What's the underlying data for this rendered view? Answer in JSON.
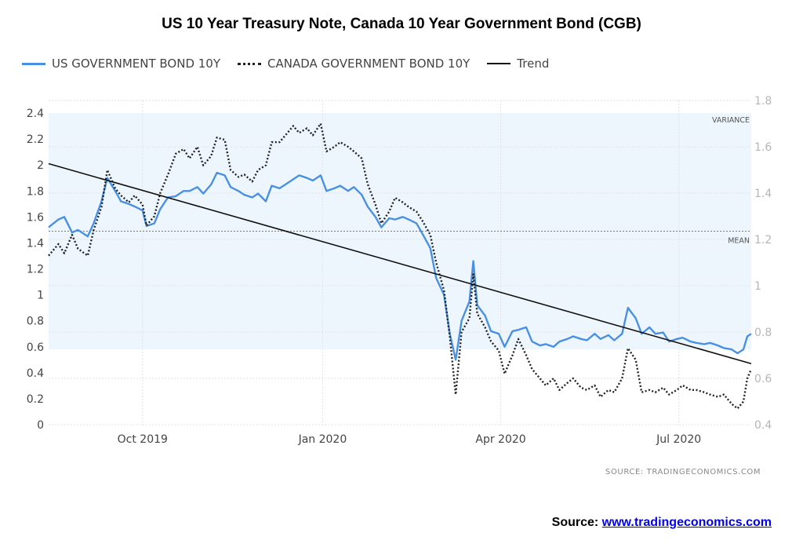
{
  "title": "US 10 Year Treasury Note, Canada 10 Year Government Bond (CGB)",
  "legend": {
    "us": "US GOVERNMENT BOND 10Y",
    "canada": "CANADA GOVERNMENT BOND 10Y",
    "trend": "Trend"
  },
  "annotations": {
    "variance": "VARIANCE",
    "mean": "MEAN"
  },
  "source_small": "SOURCE:  TRADINGECONOMICS.COM",
  "footer": {
    "label": "Source: ",
    "link_text": "www.tradingeconomics.com"
  },
  "colors": {
    "us": "#4a90e2",
    "canada": "#222222",
    "trend": "#111111",
    "variance_band": "#eef6fd"
  },
  "chart_data": {
    "type": "line",
    "title": "US 10 Year Treasury Note, Canada 10 Year Government Bond (CGB)",
    "x_axis": {
      "type": "date",
      "range": [
        "2019-08-14",
        "2020-08-07"
      ],
      "tick_labels": [
        {
          "date": "2019-10-01",
          "label": "Oct 2019"
        },
        {
          "date": "2020-01-01",
          "label": "Jan 2020"
        },
        {
          "date": "2020-04-01",
          "label": "Apr 2020"
        },
        {
          "date": "2020-07-01",
          "label": "Jul 2020"
        }
      ]
    },
    "y_left": {
      "ylim": [
        0,
        2.4
      ],
      "ticks": [
        0,
        0.2,
        0.4,
        0.6,
        0.8,
        1,
        1.2,
        1.4,
        1.6,
        1.8,
        2,
        2.2,
        2.4
      ],
      "series": "US GOVERNMENT BOND 10Y"
    },
    "y_right": {
      "ylim": [
        0.4,
        1.8
      ],
      "ticks": [
        0.4,
        0.6,
        0.8,
        1,
        1.2,
        1.4,
        1.6,
        1.8
      ],
      "series": "CANADA GOVERNMENT BOND 10Y"
    },
    "grid": true,
    "legend_position": "top-left",
    "variance_band": {
      "axis": "left",
      "from": 0.58,
      "to": 2.4
    },
    "mean_line": {
      "axis": "left",
      "value": 1.49
    },
    "trend": {
      "axis": "left",
      "from": [
        "2019-08-14",
        2.01
      ],
      "to": [
        "2020-08-07",
        0.47
      ]
    },
    "series": [
      {
        "name": "US GOVERNMENT BOND 10Y",
        "axis": "left",
        "style": "solid",
        "points": [
          [
            "2019-08-14",
            1.52
          ],
          [
            "2019-08-19",
            1.58
          ],
          [
            "2019-08-22",
            1.6
          ],
          [
            "2019-08-26",
            1.48
          ],
          [
            "2019-08-29",
            1.5
          ],
          [
            "2019-09-03",
            1.45
          ],
          [
            "2019-09-06",
            1.55
          ],
          [
            "2019-09-10",
            1.72
          ],
          [
            "2019-09-13",
            1.9
          ],
          [
            "2019-09-17",
            1.8
          ],
          [
            "2019-09-20",
            1.72
          ],
          [
            "2019-09-24",
            1.7
          ],
          [
            "2019-09-27",
            1.68
          ],
          [
            "2019-10-01",
            1.65
          ],
          [
            "2019-10-03",
            1.53
          ],
          [
            "2019-10-07",
            1.55
          ],
          [
            "2019-10-10",
            1.66
          ],
          [
            "2019-10-14",
            1.75
          ],
          [
            "2019-10-18",
            1.76
          ],
          [
            "2019-10-22",
            1.8
          ],
          [
            "2019-10-25",
            1.8
          ],
          [
            "2019-10-29",
            1.83
          ],
          [
            "2019-11-01",
            1.78
          ],
          [
            "2019-11-05",
            1.85
          ],
          [
            "2019-11-08",
            1.94
          ],
          [
            "2019-11-12",
            1.92
          ],
          [
            "2019-11-15",
            1.83
          ],
          [
            "2019-11-19",
            1.8
          ],
          [
            "2019-11-22",
            1.77
          ],
          [
            "2019-11-26",
            1.75
          ],
          [
            "2019-11-29",
            1.78
          ],
          [
            "2019-12-03",
            1.72
          ],
          [
            "2019-12-06",
            1.84
          ],
          [
            "2019-12-10",
            1.82
          ],
          [
            "2019-12-13",
            1.85
          ],
          [
            "2019-12-17",
            1.89
          ],
          [
            "2019-12-20",
            1.92
          ],
          [
            "2019-12-24",
            1.9
          ],
          [
            "2019-12-27",
            1.88
          ],
          [
            "2019-12-31",
            1.92
          ],
          [
            "2020-01-03",
            1.8
          ],
          [
            "2020-01-07",
            1.82
          ],
          [
            "2020-01-10",
            1.84
          ],
          [
            "2020-01-14",
            1.8
          ],
          [
            "2020-01-17",
            1.83
          ],
          [
            "2020-01-21",
            1.77
          ],
          [
            "2020-01-24",
            1.68
          ],
          [
            "2020-01-28",
            1.6
          ],
          [
            "2020-01-31",
            1.52
          ],
          [
            "2020-02-04",
            1.59
          ],
          [
            "2020-02-07",
            1.58
          ],
          [
            "2020-02-11",
            1.6
          ],
          [
            "2020-02-14",
            1.58
          ],
          [
            "2020-02-18",
            1.55
          ],
          [
            "2020-02-21",
            1.47
          ],
          [
            "2020-02-25",
            1.36
          ],
          [
            "2020-02-28",
            1.13
          ],
          [
            "2020-03-03",
            1.0
          ],
          [
            "2020-03-06",
            0.7
          ],
          [
            "2020-03-09",
            0.5
          ],
          [
            "2020-03-12",
            0.8
          ],
          [
            "2020-03-16",
            0.95
          ],
          [
            "2020-03-18",
            1.26
          ],
          [
            "2020-03-20",
            0.92
          ],
          [
            "2020-03-24",
            0.84
          ],
          [
            "2020-03-27",
            0.72
          ],
          [
            "2020-03-31",
            0.7
          ],
          [
            "2020-04-03",
            0.6
          ],
          [
            "2020-04-07",
            0.72
          ],
          [
            "2020-04-10",
            0.73
          ],
          [
            "2020-04-14",
            0.75
          ],
          [
            "2020-04-17",
            0.64
          ],
          [
            "2020-04-21",
            0.61
          ],
          [
            "2020-04-24",
            0.62
          ],
          [
            "2020-04-28",
            0.6
          ],
          [
            "2020-05-01",
            0.64
          ],
          [
            "2020-05-05",
            0.66
          ],
          [
            "2020-05-08",
            0.68
          ],
          [
            "2020-05-12",
            0.66
          ],
          [
            "2020-05-15",
            0.65
          ],
          [
            "2020-05-19",
            0.7
          ],
          [
            "2020-05-22",
            0.66
          ],
          [
            "2020-05-26",
            0.69
          ],
          [
            "2020-05-29",
            0.65
          ],
          [
            "2020-06-02",
            0.7
          ],
          [
            "2020-06-05",
            0.9
          ],
          [
            "2020-06-09",
            0.82
          ],
          [
            "2020-06-12",
            0.7
          ],
          [
            "2020-06-16",
            0.75
          ],
          [
            "2020-06-19",
            0.7
          ],
          [
            "2020-06-23",
            0.71
          ],
          [
            "2020-06-26",
            0.64
          ],
          [
            "2020-06-30",
            0.66
          ],
          [
            "2020-07-03",
            0.67
          ],
          [
            "2020-07-07",
            0.64
          ],
          [
            "2020-07-10",
            0.63
          ],
          [
            "2020-07-14",
            0.62
          ],
          [
            "2020-07-17",
            0.63
          ],
          [
            "2020-07-21",
            0.61
          ],
          [
            "2020-07-24",
            0.59
          ],
          [
            "2020-07-28",
            0.58
          ],
          [
            "2020-07-31",
            0.55
          ],
          [
            "2020-08-03",
            0.58
          ],
          [
            "2020-08-05",
            0.68
          ],
          [
            "2020-08-07",
            0.7
          ]
        ]
      },
      {
        "name": "CANADA GOVERNMENT BOND 10Y",
        "axis": "right",
        "style": "dotted",
        "points": [
          [
            "2019-08-14",
            1.13
          ],
          [
            "2019-08-19",
            1.18
          ],
          [
            "2019-08-22",
            1.14
          ],
          [
            "2019-08-26",
            1.22
          ],
          [
            "2019-08-29",
            1.16
          ],
          [
            "2019-09-03",
            1.13
          ],
          [
            "2019-09-06",
            1.24
          ],
          [
            "2019-09-10",
            1.34
          ],
          [
            "2019-09-13",
            1.5
          ],
          [
            "2019-09-17",
            1.42
          ],
          [
            "2019-09-20",
            1.39
          ],
          [
            "2019-09-24",
            1.36
          ],
          [
            "2019-09-27",
            1.39
          ],
          [
            "2019-10-01",
            1.35
          ],
          [
            "2019-10-03",
            1.26
          ],
          [
            "2019-10-07",
            1.3
          ],
          [
            "2019-10-10",
            1.4
          ],
          [
            "2019-10-14",
            1.48
          ],
          [
            "2019-10-18",
            1.57
          ],
          [
            "2019-10-22",
            1.59
          ],
          [
            "2019-10-25",
            1.55
          ],
          [
            "2019-10-29",
            1.6
          ],
          [
            "2019-11-01",
            1.52
          ],
          [
            "2019-11-05",
            1.56
          ],
          [
            "2019-11-08",
            1.64
          ],
          [
            "2019-11-12",
            1.63
          ],
          [
            "2019-11-15",
            1.5
          ],
          [
            "2019-11-19",
            1.47
          ],
          [
            "2019-11-22",
            1.48
          ],
          [
            "2019-11-26",
            1.45
          ],
          [
            "2019-11-29",
            1.5
          ],
          [
            "2019-12-03",
            1.52
          ],
          [
            "2019-12-06",
            1.62
          ],
          [
            "2019-12-10",
            1.62
          ],
          [
            "2019-12-13",
            1.65
          ],
          [
            "2019-12-17",
            1.69
          ],
          [
            "2019-12-20",
            1.66
          ],
          [
            "2019-12-24",
            1.68
          ],
          [
            "2019-12-27",
            1.65
          ],
          [
            "2019-12-31",
            1.7
          ],
          [
            "2020-01-03",
            1.58
          ],
          [
            "2020-01-07",
            1.6
          ],
          [
            "2020-01-10",
            1.62
          ],
          [
            "2020-01-14",
            1.6
          ],
          [
            "2020-01-17",
            1.58
          ],
          [
            "2020-01-21",
            1.55
          ],
          [
            "2020-01-24",
            1.44
          ],
          [
            "2020-01-28",
            1.35
          ],
          [
            "2020-01-31",
            1.27
          ],
          [
            "2020-02-04",
            1.32
          ],
          [
            "2020-02-07",
            1.38
          ],
          [
            "2020-02-11",
            1.36
          ],
          [
            "2020-02-14",
            1.34
          ],
          [
            "2020-02-18",
            1.32
          ],
          [
            "2020-02-21",
            1.28
          ],
          [
            "2020-02-25",
            1.22
          ],
          [
            "2020-02-28",
            1.1
          ],
          [
            "2020-03-03",
            0.98
          ],
          [
            "2020-03-06",
            0.78
          ],
          [
            "2020-03-09",
            0.53
          ],
          [
            "2020-03-12",
            0.8
          ],
          [
            "2020-03-16",
            0.86
          ],
          [
            "2020-03-18",
            1.05
          ],
          [
            "2020-03-20",
            0.88
          ],
          [
            "2020-03-24",
            0.82
          ],
          [
            "2020-03-27",
            0.76
          ],
          [
            "2020-03-31",
            0.72
          ],
          [
            "2020-04-03",
            0.62
          ],
          [
            "2020-04-07",
            0.7
          ],
          [
            "2020-04-10",
            0.77
          ],
          [
            "2020-04-14",
            0.7
          ],
          [
            "2020-04-17",
            0.64
          ],
          [
            "2020-04-21",
            0.6
          ],
          [
            "2020-04-24",
            0.57
          ],
          [
            "2020-04-28",
            0.6
          ],
          [
            "2020-05-01",
            0.55
          ],
          [
            "2020-05-05",
            0.58
          ],
          [
            "2020-05-08",
            0.6
          ],
          [
            "2020-05-12",
            0.56
          ],
          [
            "2020-05-15",
            0.55
          ],
          [
            "2020-05-19",
            0.57
          ],
          [
            "2020-05-22",
            0.52
          ],
          [
            "2020-05-26",
            0.55
          ],
          [
            "2020-05-29",
            0.54
          ],
          [
            "2020-06-02",
            0.6
          ],
          [
            "2020-06-05",
            0.73
          ],
          [
            "2020-06-09",
            0.68
          ],
          [
            "2020-06-12",
            0.54
          ],
          [
            "2020-06-16",
            0.55
          ],
          [
            "2020-06-19",
            0.54
          ],
          [
            "2020-06-23",
            0.56
          ],
          [
            "2020-06-26",
            0.53
          ],
          [
            "2020-06-30",
            0.55
          ],
          [
            "2020-07-03",
            0.57
          ],
          [
            "2020-07-07",
            0.55
          ],
          [
            "2020-07-10",
            0.55
          ],
          [
            "2020-07-14",
            0.54
          ],
          [
            "2020-07-17",
            0.53
          ],
          [
            "2020-07-21",
            0.52
          ],
          [
            "2020-07-24",
            0.53
          ],
          [
            "2020-07-28",
            0.49
          ],
          [
            "2020-07-31",
            0.47
          ],
          [
            "2020-08-03",
            0.5
          ],
          [
            "2020-08-05",
            0.6
          ],
          [
            "2020-08-07",
            0.64
          ]
        ]
      }
    ]
  }
}
